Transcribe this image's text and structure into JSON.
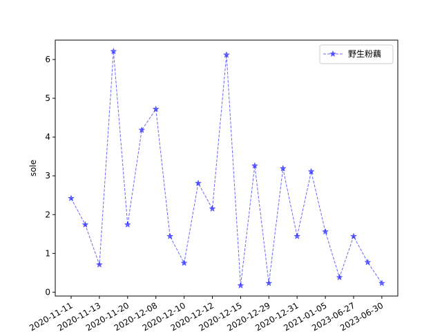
{
  "chart_data": {
    "type": "line",
    "xlabel": "",
    "ylabel": "sole",
    "ylim": [
      -0.1,
      6.5
    ],
    "yticks": [
      0,
      1,
      2,
      3,
      4,
      5,
      6
    ],
    "x": [
      "2020-11-11",
      "2020-11-12",
      "2020-11-13",
      "2020-11-14",
      "2020-11-20",
      "2020-11-21",
      "2020-12-08",
      "2020-12-09",
      "2020-12-10",
      "2020-12-11",
      "2020-12-12",
      "2020-12-14",
      "2020-12-15",
      "2020-12-16",
      "2020-12-29",
      "2020-12-30",
      "2020-12-31",
      "2021-01-04",
      "2021-01-05",
      "2021-01-06",
      "2023-06-27",
      "2023-06-29",
      "2023-06-30"
    ],
    "xticklabels": [
      "2020-11-11",
      "2020-11-13",
      "2020-11-20",
      "2020-12-08",
      "2020-12-10",
      "2020-12-12",
      "2020-12-15",
      "2020-12-29",
      "2020-12-31",
      "2021-01-05",
      "2023-06-27",
      "2023-06-30"
    ],
    "xtick_indices": [
      0,
      2,
      4,
      6,
      8,
      10,
      12,
      14,
      16,
      18,
      20,
      22
    ],
    "series": [
      {
        "name": "野生粉藕",
        "values": [
          2.42,
          1.74,
          0.71,
          6.21,
          1.74,
          4.18,
          4.72,
          1.44,
          0.75,
          2.81,
          2.15,
          6.12,
          0.17,
          3.26,
          0.23,
          3.19,
          1.44,
          3.11,
          1.56,
          0.38,
          1.44,
          0.77,
          0.23
        ],
        "color": "#0000ff",
        "linestyle": "dashed",
        "marker": "star"
      }
    ],
    "legend_position": "upper right",
    "grid": false
  }
}
